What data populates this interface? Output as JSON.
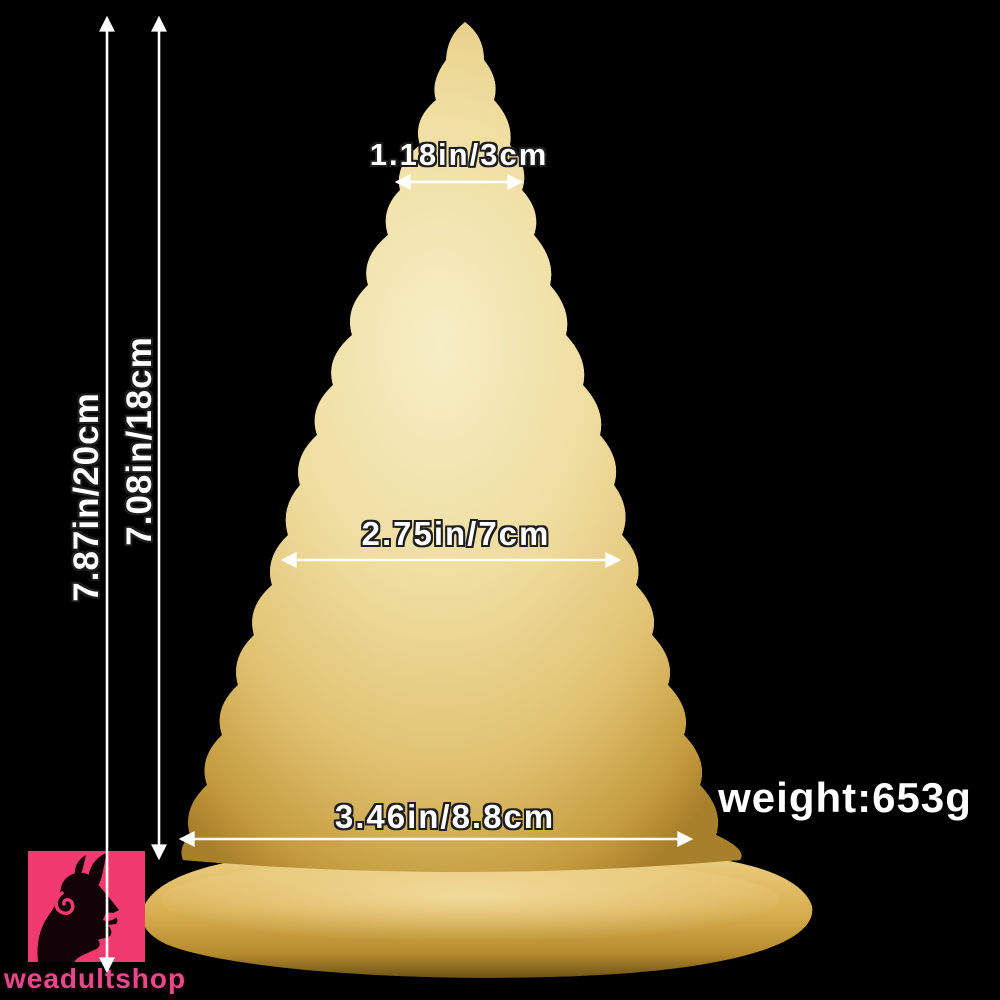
{
  "annotations": {
    "total_height": "7.87in/20cm",
    "body_height": "7.08in/18cm",
    "top_width": "1.18in/3cm",
    "middle_width": "2.75in/7cm",
    "base_width": "3.46in/8.8cm",
    "weight": "weight:653g"
  },
  "brand": {
    "name": "weadultshop"
  },
  "icons": {
    "brand_logo": "devil-profile-silhouette"
  },
  "colors": {
    "background": "#000000",
    "dimension_text": "#ffffff",
    "gold_light": "#f7eec6",
    "gold_mid": "#eed89a",
    "gold_deep": "#ddbd6a",
    "gold_dark": "#a8802a",
    "logo_pink": "#f03a70",
    "brand_text_pink": "#e8488b"
  }
}
